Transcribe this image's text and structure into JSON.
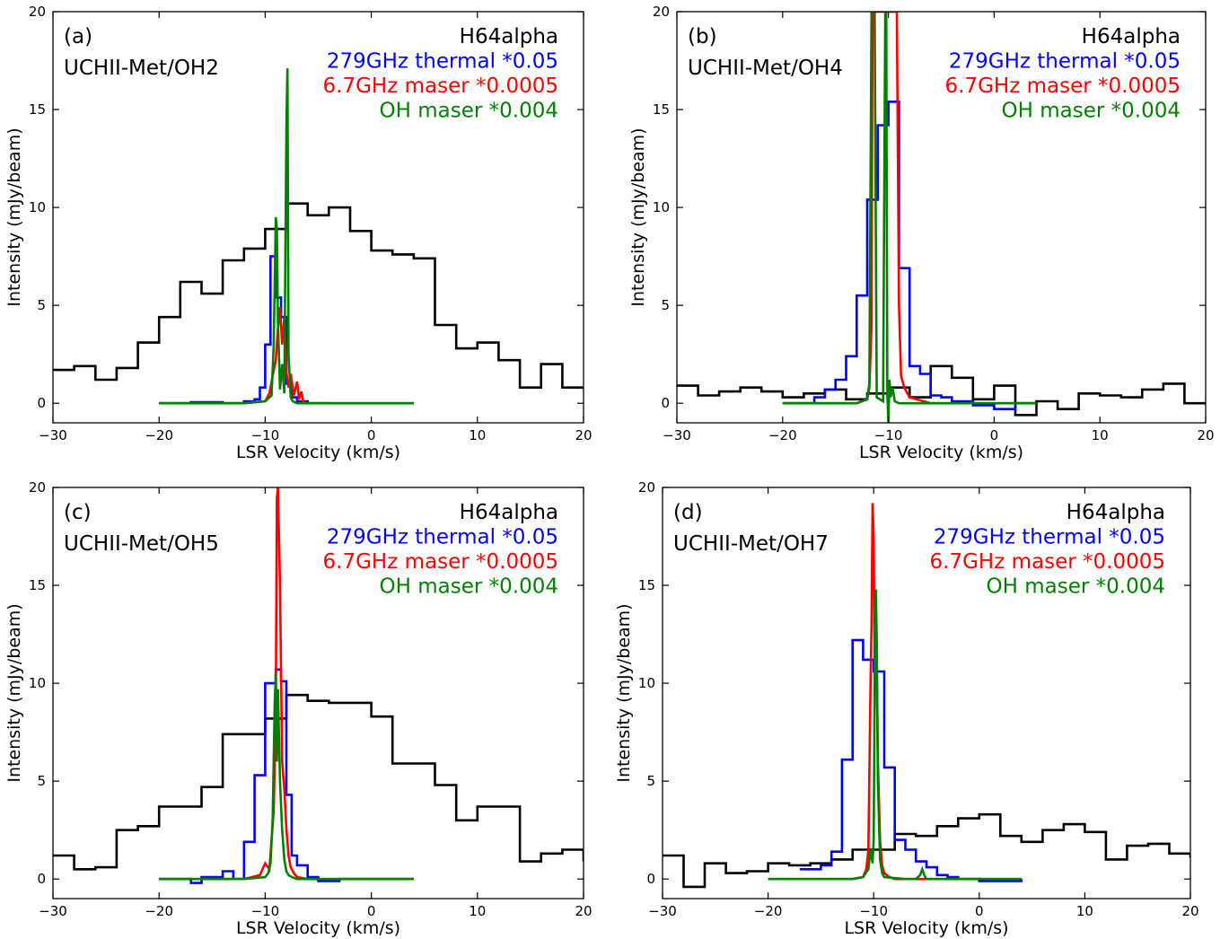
{
  "chart_data": [
    {
      "type": "line",
      "panel_label": "(a)",
      "source_name": "UCHII-Met/OH2",
      "xlabel": "LSR Velocity (km/s)",
      "ylabel": "Intensity (mJy/beam)",
      "xlim": [
        -30,
        20
      ],
      "ylim": [
        -1,
        20
      ],
      "xticks": [
        -30,
        -20,
        -10,
        0,
        10,
        20
      ],
      "yticks": [
        0,
        5,
        10,
        15,
        20
      ],
      "xtick_labels": [
        "−30",
        "−20",
        "−10",
        "0",
        "10",
        "20"
      ],
      "ytick_labels": [
        "0",
        "5",
        "10",
        "15",
        "20"
      ],
      "legend": [
        {
          "text": "H64alpha",
          "color": "#000000"
        },
        {
          "text": "279GHz thermal *0.05",
          "color": "#0000ff"
        },
        {
          "text": "6.7GHz maser *0.0005",
          "color": "#ff0000"
        },
        {
          "text": "OH maser *0.004",
          "color": "#008000"
        }
      ],
      "series": [
        {
          "color": "#000000",
          "style": "step",
          "x": [
            -30,
            -28,
            -26,
            -24,
            -22,
            -20,
            -18,
            -16,
            -14,
            -12,
            -10,
            -8,
            -6,
            -4,
            -2,
            0,
            2,
            4,
            6,
            8,
            10,
            12,
            14,
            16,
            18,
            20
          ],
          "y": [
            1.7,
            1.9,
            1.2,
            1.8,
            3.1,
            4.4,
            6.2,
            5.6,
            7.3,
            7.9,
            8.9,
            10.2,
            9.6,
            10,
            8.8,
            7.8,
            7.6,
            7.4,
            4.0,
            2.8,
            3.1,
            2.2,
            0.8,
            2.0,
            0.8,
            0.8
          ]
        },
        {
          "color": "#0000ff",
          "style": "step",
          "x": [
            -20,
            -17,
            -14,
            -12,
            -11,
            -10.5,
            -10,
            -9.5,
            -9,
            -8.5,
            -8,
            -7.5,
            -7,
            -6,
            -4
          ],
          "y": [
            0,
            0.05,
            0,
            0.1,
            0.2,
            0.8,
            3.0,
            7.5,
            5.4,
            4.4,
            1.0,
            0.3,
            0.1,
            0,
            0
          ]
        },
        {
          "color": "#ff0000",
          "style": "line",
          "x": [
            -20,
            -12,
            -10,
            -9.6,
            -9.3,
            -9.0,
            -8.8,
            -8.6,
            -8.4,
            -8.2,
            -8.0,
            -7.8,
            -7.6,
            -7.3,
            -7.0,
            -6.8,
            -6.6,
            -6.4,
            -6,
            -2,
            4
          ],
          "y": [
            0,
            0,
            0.1,
            0.5,
            1.4,
            2.2,
            3.8,
            4.9,
            3.0,
            4.4,
            1.6,
            0.8,
            1.5,
            0.4,
            1.1,
            0.2,
            0.6,
            0.05,
            0,
            0,
            0
          ]
        },
        {
          "color": "#008000",
          "style": "line",
          "x": [
            -20,
            -12,
            -10,
            -9.4,
            -9.2,
            -9.0,
            -8.9,
            -8.8,
            -8.6,
            -8.4,
            -8.2,
            -8.0,
            -7.9,
            -7.8,
            -7.6,
            -7.4,
            -7.0,
            -4,
            4
          ],
          "y": [
            0,
            0,
            0.1,
            0.4,
            3.0,
            9.5,
            9.0,
            4.2,
            0.7,
            2.0,
            0.5,
            14.0,
            17.1,
            2.5,
            0.3,
            0.1,
            0,
            0,
            0
          ]
        }
      ]
    },
    {
      "type": "line",
      "panel_label": "(b)",
      "source_name": "UCHII-Met/OH4",
      "xlabel": "LSR Velocity (km/s)",
      "ylabel": "Intensity (mJy/beam)",
      "xlim": [
        -30,
        20
      ],
      "ylim": [
        -1,
        20
      ],
      "xticks": [
        -30,
        -20,
        -10,
        0,
        10,
        20
      ],
      "yticks": [
        0,
        5,
        10,
        15,
        20
      ],
      "xtick_labels": [
        "−30",
        "−20",
        "−10",
        "0",
        "10",
        "20"
      ],
      "ytick_labels": [
        "0",
        "5",
        "10",
        "15",
        "20"
      ],
      "legend": [
        {
          "text": "H64alpha",
          "color": "#000000"
        },
        {
          "text": "279GHz thermal *0.05",
          "color": "#0000ff"
        },
        {
          "text": "6.7GHz maser *0.0005",
          "color": "#ff0000"
        },
        {
          "text": "OH maser *0.004",
          "color": "#008000"
        }
      ],
      "series": [
        {
          "color": "#000000",
          "style": "step",
          "x": [
            -30,
            -28,
            -26,
            -24,
            -22,
            -20,
            -18,
            -16,
            -14,
            -12,
            -10,
            -8,
            -6,
            -4,
            -2,
            0,
            2,
            4,
            6,
            8,
            10,
            12,
            14,
            16,
            18,
            20
          ],
          "y": [
            0.9,
            0.4,
            0.6,
            0.8,
            0.6,
            0.3,
            0.5,
            0.7,
            0.2,
            0.5,
            0.8,
            0.3,
            1.9,
            1.3,
            0.2,
            0.9,
            -0.6,
            0.1,
            -0.3,
            0.5,
            0.4,
            0.3,
            0.7,
            1.0,
            0.0,
            0.0
          ]
        },
        {
          "color": "#0000ff",
          "style": "step",
          "x": [
            -20,
            -17,
            -16,
            -15,
            -14,
            -13,
            -12,
            -11,
            -10,
            -9,
            -8,
            -7,
            -6,
            -5,
            -4,
            -2,
            0,
            2,
            4
          ],
          "y": [
            0,
            0.3,
            0.7,
            1.2,
            2.4,
            5.5,
            10.4,
            14.2,
            15.4,
            6.9,
            1.9,
            1.5,
            0.4,
            0.3,
            0.1,
            -0.1,
            -0.3,
            0,
            0
          ]
        },
        {
          "color": "#ff0000",
          "style": "line",
          "x": [
            -20,
            -13,
            -12,
            -11.8,
            -11.6,
            -11.5,
            -11.3,
            -11,
            -10.5,
            -10,
            -9.8,
            -9.5,
            -9.2,
            -9.0,
            -8.8,
            -8.5,
            -8,
            -6,
            4
          ],
          "y": [
            0,
            0,
            0.2,
            0.8,
            4,
            20,
            20,
            20,
            20,
            20,
            20,
            20,
            20,
            5.0,
            1.4,
            0.8,
            0.3,
            0,
            0
          ]
        },
        {
          "color": "#008000",
          "style": "line",
          "x": [
            -20,
            -13,
            -12,
            -11.8,
            -11.6,
            -11.5,
            -11.3,
            -11.1,
            -10.5,
            -10.3,
            -10.2,
            -10.1,
            -10.0,
            -9.9,
            -9.8,
            -9.6,
            -9.4,
            -9,
            4
          ],
          "y": [
            0,
            0,
            0.2,
            1,
            20,
            20,
            20,
            0.3,
            0.1,
            20,
            20,
            0.5,
            -1,
            1.2,
            0.3,
            0.8,
            0.1,
            0,
            0
          ]
        }
      ]
    },
    {
      "type": "line",
      "panel_label": "(c)",
      "source_name": "UCHII-Met/OH5",
      "xlabel": "LSR Velocity (km/s)",
      "ylabel": "Intensity (mJy/beam)",
      "xlim": [
        -30,
        20
      ],
      "ylim": [
        -1,
        20
      ],
      "xticks": [
        -30,
        -20,
        -10,
        0,
        10,
        20
      ],
      "yticks": [
        0,
        5,
        10,
        15,
        20
      ],
      "xtick_labels": [
        "−30",
        "−20",
        "−10",
        "0",
        "10",
        "20"
      ],
      "ytick_labels": [
        "0",
        "5",
        "10",
        "15",
        "20"
      ],
      "legend": [
        {
          "text": "H64alpha",
          "color": "#000000"
        },
        {
          "text": "279GHz thermal *0.05",
          "color": "#0000ff"
        },
        {
          "text": "6.7GHz maser *0.0005",
          "color": "#ff0000"
        },
        {
          "text": "OH maser *0.004",
          "color": "#008000"
        }
      ],
      "series": [
        {
          "color": "#000000",
          "style": "step",
          "x": [
            -30,
            -28,
            -26,
            -24,
            -22,
            -20,
            -18,
            -16,
            -14,
            -12,
            -10,
            -8,
            -6,
            -4,
            -2,
            0,
            2,
            4,
            6,
            8,
            10,
            12,
            14,
            16,
            18,
            20
          ],
          "y": [
            1.2,
            0.5,
            0.6,
            2.5,
            2.7,
            3.7,
            3.7,
            4.7,
            7.4,
            7.4,
            8.2,
            9.4,
            9.1,
            9.0,
            9.0,
            8.3,
            5.9,
            5.9,
            4.8,
            3.0,
            3.7,
            3.7,
            0.9,
            1.3,
            1.5,
            0.9
          ]
        },
        {
          "color": "#0000ff",
          "style": "step",
          "x": [
            -20,
            -17,
            -16,
            -14,
            -13,
            -12,
            -11,
            -10,
            -9,
            -8.5,
            -8,
            -7.5,
            -7,
            -6,
            -5,
            -3,
            0,
            4
          ],
          "y": [
            0,
            -0.2,
            0.1,
            0.4,
            0,
            1.9,
            5.3,
            10.0,
            10.7,
            10.1,
            4.3,
            1.2,
            0.7,
            0.1,
            -0.1,
            0,
            0,
            0
          ]
        },
        {
          "color": "#ff0000",
          "style": "line",
          "x": [
            -20,
            -12,
            -10.5,
            -10,
            -9.6,
            -9.4,
            -9.2,
            -9.0,
            -8.9,
            -8.8,
            -8.6,
            -8.4,
            -8.2,
            -8.0,
            -7.8,
            -7.6,
            -7.3,
            -7.0,
            -6,
            4
          ],
          "y": [
            0,
            0,
            0.2,
            0.8,
            0.5,
            2.0,
            3.5,
            8.5,
            19.5,
            20,
            15.0,
            6.0,
            4.6,
            2.6,
            1.2,
            0.6,
            0.3,
            0.1,
            0,
            0
          ]
        },
        {
          "color": "#008000",
          "style": "line",
          "x": [
            -20,
            -12,
            -10,
            -9.7,
            -9.5,
            -9.3,
            -9.1,
            -9.0,
            -8.9,
            -8.8,
            -8.6,
            -8.4,
            -8.2,
            -8.0,
            -7.8,
            -7.5,
            -7,
            4
          ],
          "y": [
            0,
            0,
            0.1,
            0.3,
            0.8,
            3.0,
            9.0,
            10.5,
            6.0,
            9.7,
            5.0,
            2.5,
            1.0,
            0.4,
            0.2,
            0.1,
            0,
            0
          ]
        }
      ]
    },
    {
      "type": "line",
      "panel_label": "(d)",
      "source_name": "UCHII-Met/OH7",
      "xlabel": "LSR Velocity (km/s)",
      "ylabel": "Intensity (mJy/beam)",
      "xlim": [
        -30,
        20
      ],
      "ylim": [
        -1,
        20
      ],
      "xticks": [
        -30,
        -20,
        -10,
        0,
        10,
        20
      ],
      "yticks": [
        0,
        5,
        10,
        15,
        20
      ],
      "xtick_labels": [
        "−30",
        "−20",
        "−10",
        "0",
        "10",
        "20"
      ],
      "ytick_labels": [
        "0",
        "5",
        "10",
        "15",
        "20"
      ],
      "legend": [
        {
          "text": "H64alpha",
          "color": "#000000"
        },
        {
          "text": "279GHz thermal *0.05",
          "color": "#0000ff"
        },
        {
          "text": "6.7GHz maser *0.0005",
          "color": "#ff0000"
        },
        {
          "text": "OH maser *0.004",
          "color": "#008000"
        }
      ],
      "series": [
        {
          "color": "#000000",
          "style": "step",
          "x": [
            -30,
            -28,
            -26,
            -24,
            -22,
            -20,
            -18,
            -16,
            -14,
            -12,
            -10,
            -8,
            -6,
            -4,
            -2,
            0,
            2,
            4,
            6,
            8,
            10,
            12,
            14,
            16,
            18,
            20
          ],
          "y": [
            1.2,
            -0.4,
            0.8,
            0.3,
            0.4,
            0.8,
            0.7,
            0.8,
            1.0,
            1.5,
            1.5,
            2.3,
            2.2,
            2.7,
            3.1,
            3.3,
            2.2,
            1.9,
            2.5,
            2.8,
            2.4,
            1.0,
            1.7,
            1.8,
            1.3,
            1.1
          ]
        },
        {
          "color": "#0000ff",
          "style": "step",
          "x": [
            -17,
            -15,
            -14,
            -13,
            -12,
            -11,
            -10,
            -9,
            -8,
            -7,
            -6,
            -5,
            -4,
            -3,
            -2,
            0,
            4
          ],
          "y": [
            0.5,
            0.7,
            1.4,
            6.1,
            12.2,
            11.2,
            10.6,
            5.7,
            2.0,
            1.5,
            0.9,
            0.6,
            0.2,
            0.1,
            0,
            -0.1,
            0
          ]
        },
        {
          "color": "#ff0000",
          "style": "line",
          "x": [
            -20,
            -12,
            -11,
            -10.7,
            -10.5,
            -10.3,
            -10.2,
            -10.1,
            -10.0,
            -9.9,
            -9.8,
            -9.6,
            -9.4,
            -9.2,
            -9.0,
            -8.5,
            -8,
            4
          ],
          "y": [
            0,
            0,
            0.1,
            0.5,
            1.5,
            10.0,
            13.0,
            19.2,
            17.5,
            10.3,
            14.5,
            6.0,
            2.0,
            0.7,
            0.3,
            0.1,
            0,
            0
          ]
        },
        {
          "color": "#008000",
          "style": "line",
          "x": [
            -20,
            -12,
            -11,
            -10.5,
            -10.3,
            -10.1,
            -10.0,
            -9.9,
            -9.8,
            -9.7,
            -9.6,
            -9.5,
            -9.4,
            -9.2,
            -9.0,
            -7,
            -6,
            -5.6,
            -5.4,
            -5.2,
            -5,
            4
          ],
          "y": [
            0,
            0,
            0.1,
            0.5,
            1.5,
            0.8,
            2.0,
            10.3,
            14.8,
            12.0,
            5.0,
            3.0,
            1.0,
            0.3,
            0.1,
            0,
            0,
            0.2,
            0.5,
            0.2,
            0,
            0
          ]
        }
      ]
    }
  ]
}
